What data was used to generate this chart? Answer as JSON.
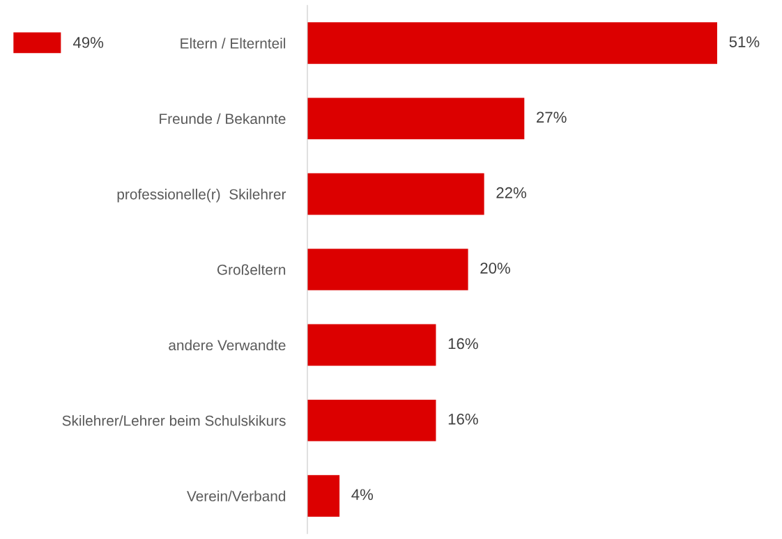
{
  "chart_data": {
    "type": "bar",
    "orientation": "horizontal",
    "categories": [
      "Eltern / Elternteil",
      "Freunde / Bekannte",
      "professionelle(r)  Skilehrer",
      "Großeltern",
      "andere Verwandte",
      "Skilehrer/Lehrer beim Schulskikurs",
      "Verein/Verband"
    ],
    "series": [
      {
        "name": "49%",
        "color": "#dc0000",
        "values": [
          51,
          27,
          22,
          20,
          16,
          16,
          4
        ],
        "value_labels": [
          "51%",
          "27%",
          "22%",
          "20%",
          "16%",
          "16%",
          "4%"
        ]
      }
    ],
    "tick_labels": "y",
    "grid": false,
    "legend": "top left"
  }
}
